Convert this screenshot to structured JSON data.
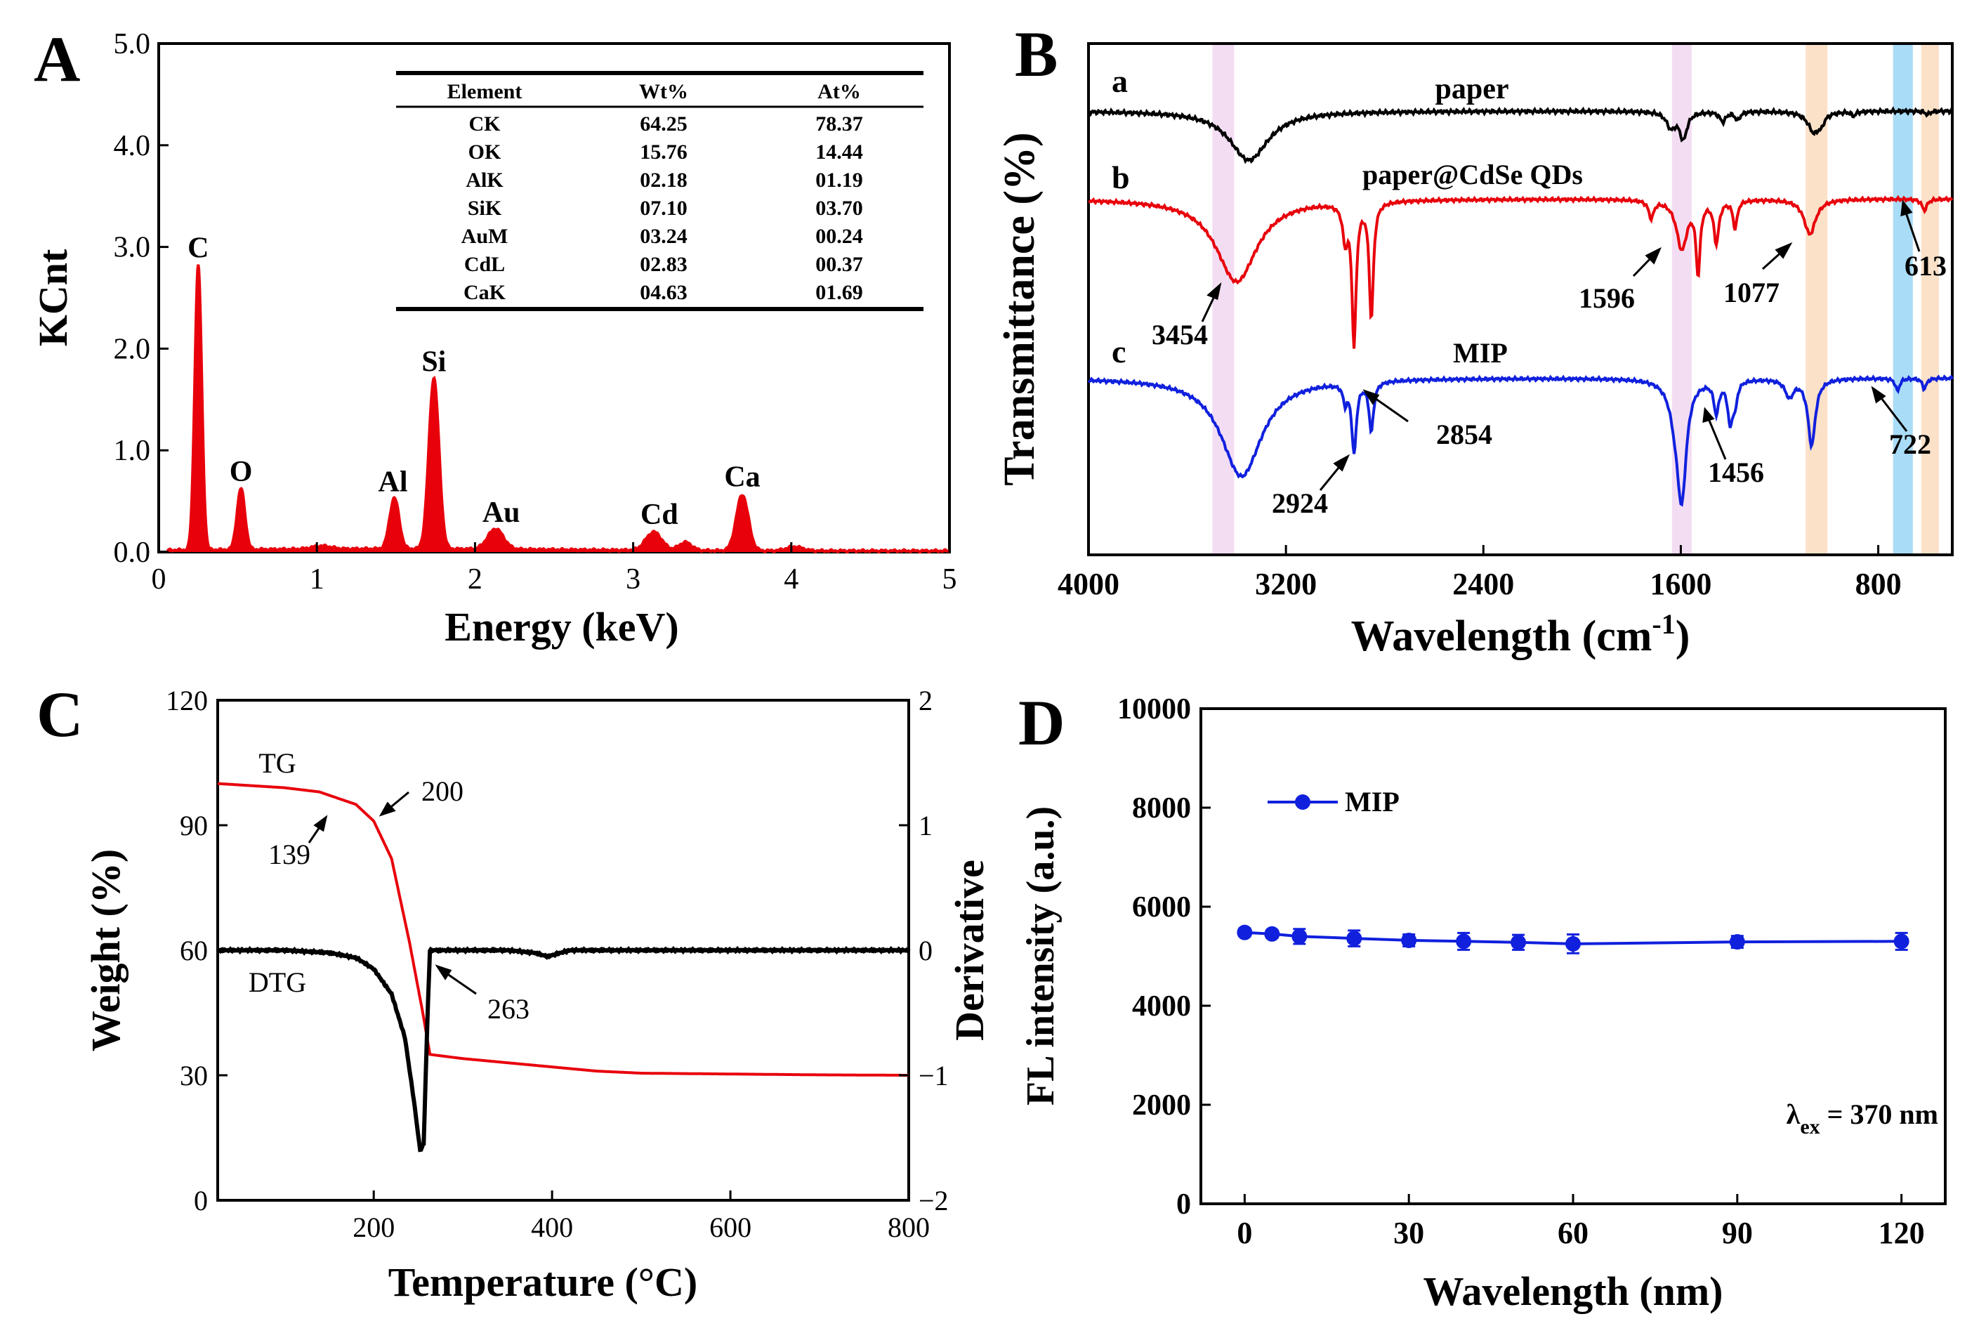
{
  "colors": {
    "red": "#e8000b",
    "black": "#000000",
    "blue": "#1020dd",
    "pink_band": "#f3ddf3",
    "orange_band": "#fbe1c8",
    "blue_band": "#a9dcf7"
  },
  "chart_data": [
    {
      "panel": "A",
      "type": "line",
      "subtype": "EDS spectrum",
      "xlabel": "Energy (keV)",
      "ylabel": "KCnt",
      "xlim": [
        0,
        5
      ],
      "ylim": [
        0,
        5
      ],
      "x_ticks": [
        "0",
        "1",
        "2",
        "3",
        "4",
        "5"
      ],
      "y_ticks": [
        "0.0",
        "1.0",
        "2.0",
        "3.0",
        "4.0",
        "5.0"
      ],
      "peaks": [
        {
          "label": "C",
          "energy": 0.25,
          "height": 2.8
        },
        {
          "label": "O",
          "energy": 0.52,
          "height": 0.6
        },
        {
          "label": "Al",
          "energy": 1.49,
          "height": 0.5
        },
        {
          "label": "Si",
          "energy": 1.74,
          "height": 1.68
        },
        {
          "label": "Au",
          "energy": 2.13,
          "height": 0.2
        },
        {
          "label": "Cd",
          "energy": 3.13,
          "height": 0.18
        },
        {
          "label": "Ca",
          "energy": 3.69,
          "height": 0.55
        }
      ],
      "table": {
        "headers": [
          "Element",
          "Wt%",
          "At%"
        ],
        "rows": [
          [
            "CK",
            "64.25",
            "78.37"
          ],
          [
            "OK",
            "15.76",
            "14.44"
          ],
          [
            "AlK",
            "02.18",
            "01.19"
          ],
          [
            "SiK",
            "07.10",
            "03.70"
          ],
          [
            "AuM",
            "03.24",
            "00.24"
          ],
          [
            "CdL",
            "02.83",
            "00.37"
          ],
          [
            "CaK",
            "04.63",
            "01.69"
          ]
        ]
      }
    },
    {
      "panel": "B",
      "type": "line",
      "subtype": "FTIR spectra",
      "xlabel_main": "Wavelength (cm",
      "xlabel_sup": "-1",
      "xlabel_end": ")",
      "ylabel": "Transmittance (%)",
      "xlim": [
        4000,
        500
      ],
      "x_ticks": [
        "4000",
        "3200",
        "2400",
        "1600",
        "800"
      ],
      "series": [
        {
          "id": "a",
          "name": "paper",
          "color": "#000000"
        },
        {
          "id": "b",
          "name": "paper@CdSe QDs",
          "color": "#e8000b"
        },
        {
          "id": "c",
          "name": "MIP",
          "color": "#1020dd"
        }
      ],
      "bands": [
        {
          "center": 3454,
          "color": "pink"
        },
        {
          "center": 1596,
          "color": "pink"
        },
        {
          "center": 1050,
          "color": "orange"
        },
        {
          "center": 700,
          "color": "blue"
        },
        {
          "center": 590,
          "color": "orange"
        }
      ],
      "annotations": [
        "3454",
        "1596",
        "1077",
        "613",
        "2924",
        "2854",
        "1456",
        "722"
      ]
    },
    {
      "panel": "C",
      "type": "line",
      "subtype": "TG / DTG",
      "xlabel": "Temperature (°C)",
      "ylabel_left": "Weight (%)",
      "ylabel_right": "Derivative",
      "xlim": [
        25,
        800
      ],
      "ylim_left": [
        0,
        120
      ],
      "ylim_right": [
        -2,
        2
      ],
      "x_ticks": [
        "200",
        "400",
        "600",
        "800"
      ],
      "y_ticks_left": [
        "0",
        "30",
        "60",
        "90",
        "120"
      ],
      "y_ticks_right": [
        "−2",
        "−1",
        "0",
        "1",
        "2"
      ],
      "series": [
        {
          "name": "TG",
          "color": "#e8000b",
          "x": [
            25,
            100,
            139,
            180,
            200,
            220,
            240,
            255,
            263,
            300,
            350,
            400,
            450,
            500,
            600,
            700,
            800
          ],
          "y": [
            100,
            99,
            98,
            95,
            91,
            82,
            62,
            45,
            35,
            34,
            33,
            32,
            31,
            30.5,
            30.3,
            30.1,
            30
          ]
        },
        {
          "name": "DTG",
          "color": "#000000",
          "x": [
            25,
            100,
            150,
            180,
            200,
            220,
            235,
            245,
            252,
            256,
            260,
            263,
            300,
            350,
            380,
            395,
            420,
            500,
            600,
            800
          ],
          "y": [
            0,
            0,
            -0.02,
            -0.06,
            -0.15,
            -0.35,
            -0.7,
            -1.2,
            -1.6,
            -1.55,
            -0.6,
            0,
            0,
            0,
            -0.02,
            -0.05,
            0,
            0,
            0,
            0
          ]
        }
      ],
      "annotations": [
        "TG",
        "DTG",
        "139",
        "200",
        "263"
      ]
    },
    {
      "panel": "D",
      "type": "line",
      "subtype": "line with error bars",
      "xlabel": "Wavelength (nm)",
      "ylabel": "FL intensity (a.u.)",
      "xlim": [
        -8,
        128
      ],
      "ylim": [
        0,
        10000
      ],
      "x_ticks": [
        "0",
        "30",
        "60",
        "90",
        "120"
      ],
      "y_ticks": [
        "0",
        "2000",
        "4000",
        "6000",
        "8000",
        "10000"
      ],
      "series": [
        {
          "name": "MIP",
          "color": "#1020dd",
          "x": [
            0,
            5,
            10,
            20,
            30,
            40,
            50,
            60,
            90,
            120
          ],
          "y": [
            5480,
            5450,
            5400,
            5360,
            5320,
            5300,
            5280,
            5250,
            5290,
            5300
          ],
          "err": [
            80,
            80,
            150,
            160,
            120,
            170,
            150,
            190,
            120,
            170
          ]
        }
      ],
      "annotation_lambda": "λ",
      "annotation_sub": "ex",
      "annotation_rest": " = 370 nm"
    }
  ]
}
